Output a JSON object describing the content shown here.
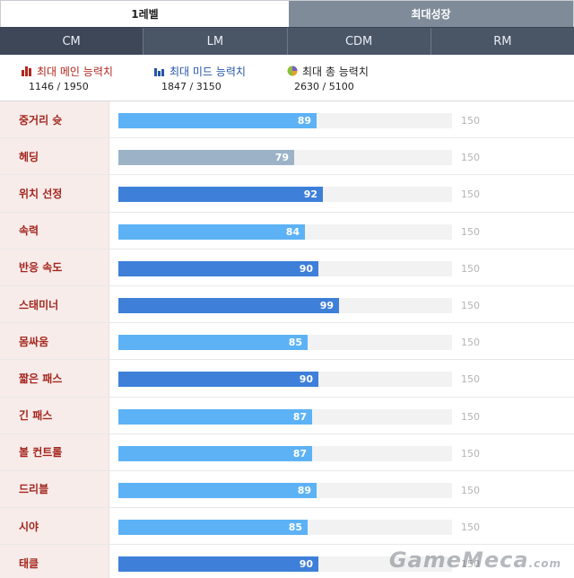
{
  "top_tabs": [
    {
      "label": "1레벨",
      "active": true
    },
    {
      "label": "최대성장",
      "active": false
    }
  ],
  "position_tabs": [
    "CM",
    "LM",
    "CDM",
    "RM"
  ],
  "selected_position": "CM",
  "summary": {
    "main": {
      "title": "최대 메인 능력치",
      "value": "1146 / 1950",
      "icon": "bar-chart-icon",
      "color": "#b2261c"
    },
    "mid": {
      "title": "최대 미드 능력치",
      "value": "1847 / 3150",
      "icon": "bar-chart-icon",
      "color": "#2655a8"
    },
    "total": {
      "title": "최대 총 능력치",
      "value": "2630 / 5100",
      "icon": "pie-chart-icon",
      "color": "#222222"
    }
  },
  "max_value": 150,
  "max_label": "150",
  "colors": {
    "light": "#5cb2f5",
    "dark": "#3d7fd9",
    "grey": "#9cb3c7"
  },
  "stats": [
    {
      "label": "중거리 슛",
      "value": 89,
      "tone": "light"
    },
    {
      "label": "헤딩",
      "value": 79,
      "tone": "grey"
    },
    {
      "label": "위치 선정",
      "value": 92,
      "tone": "dark"
    },
    {
      "label": "속력",
      "value": 84,
      "tone": "light"
    },
    {
      "label": "반응 속도",
      "value": 90,
      "tone": "dark"
    },
    {
      "label": "스태미너",
      "value": 99,
      "tone": "dark"
    },
    {
      "label": "몸싸움",
      "value": 85,
      "tone": "light"
    },
    {
      "label": "짧은 패스",
      "value": 90,
      "tone": "dark"
    },
    {
      "label": "긴 패스",
      "value": 87,
      "tone": "light"
    },
    {
      "label": "볼 컨트롤",
      "value": 87,
      "tone": "light"
    },
    {
      "label": "드리블",
      "value": 89,
      "tone": "light"
    },
    {
      "label": "시야",
      "value": 85,
      "tone": "light"
    },
    {
      "label": "태클",
      "value": 90,
      "tone": "dark"
    }
  ],
  "watermark": {
    "main": "GameMeca",
    "suffix": ".com"
  }
}
